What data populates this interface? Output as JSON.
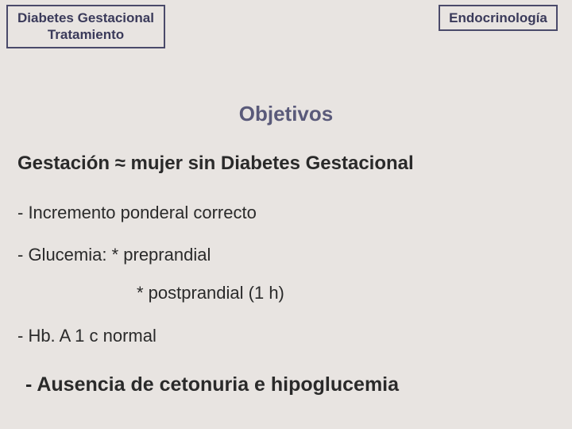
{
  "header": {
    "left_line1": "Diabetes Gestacional",
    "left_line2": "Tratamiento",
    "right": "Endocrinología"
  },
  "title": "Objetivos",
  "subtitle": "Gestación ≈ mujer sin Diabetes Gestacional",
  "lines": {
    "l1": "- Incremento ponderal correcto",
    "l2": "- Glucemia:   * preprandial",
    "l3": "* postprandial (1 h)",
    "l4": "- Hb. A 1 c normal",
    "l5": "- Ausencia de cetonuria e hipoglucemia"
  },
  "colors": {
    "background": "#e8e4e1",
    "box_border": "#4a4a6a",
    "header_text": "#3a3a5a",
    "title_text": "#5a5a7a",
    "body_text": "#2a2a2a"
  }
}
